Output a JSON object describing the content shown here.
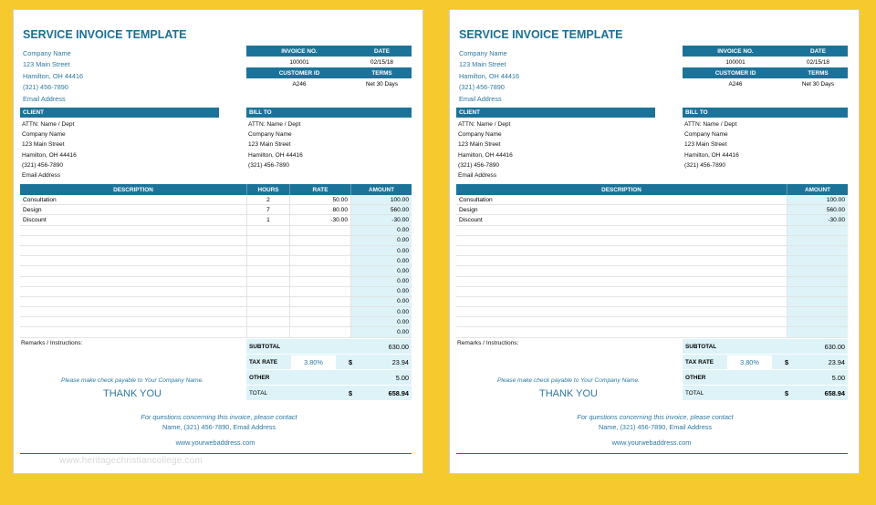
{
  "title": "SERVICE INVOICE TEMPLATE",
  "company": {
    "name": "Company Name",
    "street": "123 Main Street",
    "city": "Hamilton, OH  44416",
    "phone": "(321) 456-7890",
    "email": "Email Address"
  },
  "invoice_header": {
    "invoice_no_label": "INVOICE NO.",
    "date_label": "DATE",
    "invoice_no": "100001",
    "date": "02/15/18",
    "customer_id_label": "CUSTOMER ID",
    "terms_label": "TERMS",
    "customer_id": "A246",
    "terms": "Net 30 Days"
  },
  "client": {
    "label": "CLIENT",
    "attn": "ATTN: Name / Dept",
    "company": "Company Name",
    "street": "123 Main Street",
    "city": "Hamilton, OH  44416",
    "phone": "(321) 456-7890",
    "email": "Email Address"
  },
  "bill_to": {
    "label": "BILL TO",
    "attn": "ATTN: Name / Dept",
    "company": "Company Name",
    "street": "123 Main Street",
    "city": "Hamilton, OH  44416",
    "phone": "(321) 456-7890"
  },
  "columns": {
    "description": "DESCRIPTION",
    "hours": "HOURS",
    "rate": "RATE",
    "amount": "AMOUNT"
  },
  "line_items": [
    {
      "description": "Consultation",
      "hours": "2",
      "rate": "50.00",
      "amount": "100.00"
    },
    {
      "description": "Design",
      "hours": "7",
      "rate": "80.00",
      "amount": "560.00"
    },
    {
      "description": "Discount",
      "hours": "1",
      "rate": "-30.00",
      "amount": "-30.00"
    },
    {
      "description": "",
      "hours": "",
      "rate": "",
      "amount": "0.00"
    },
    {
      "description": "",
      "hours": "",
      "rate": "",
      "amount": "0.00"
    },
    {
      "description": "",
      "hours": "",
      "rate": "",
      "amount": "0.00"
    },
    {
      "description": "",
      "hours": "",
      "rate": "",
      "amount": "0.00"
    },
    {
      "description": "",
      "hours": "",
      "rate": "",
      "amount": "0.00"
    },
    {
      "description": "",
      "hours": "",
      "rate": "",
      "amount": "0.00"
    },
    {
      "description": "",
      "hours": "",
      "rate": "",
      "amount": "0.00"
    },
    {
      "description": "",
      "hours": "",
      "rate": "",
      "amount": "0.00"
    },
    {
      "description": "",
      "hours": "",
      "rate": "",
      "amount": "0.00"
    },
    {
      "description": "",
      "hours": "",
      "rate": "",
      "amount": "0.00"
    },
    {
      "description": "",
      "hours": "",
      "rate": "",
      "amount": "0.00"
    }
  ],
  "line_items_right": [
    {
      "description": "Consultation",
      "amount": "100.00"
    },
    {
      "description": "Design",
      "amount": "560.00"
    },
    {
      "description": "Discount",
      "amount": "-30.00"
    },
    {
      "description": "",
      "amount": ""
    },
    {
      "description": "",
      "amount": ""
    },
    {
      "description": "",
      "amount": ""
    },
    {
      "description": "",
      "amount": ""
    },
    {
      "description": "",
      "amount": ""
    },
    {
      "description": "",
      "amount": ""
    },
    {
      "description": "",
      "amount": ""
    },
    {
      "description": "",
      "amount": ""
    },
    {
      "description": "",
      "amount": ""
    },
    {
      "description": "",
      "amount": ""
    },
    {
      "description": "",
      "amount": ""
    }
  ],
  "remarks_label": "Remarks / Instructions:",
  "totals": {
    "subtotal_label": "SUBTOTAL",
    "subtotal": "630.00",
    "tax_rate_label": "TAX RATE",
    "tax_rate": "3.80%",
    "currency": "$",
    "tax_amount": "23.94",
    "other_label": "OTHER",
    "other": "5.00",
    "total_label": "TOTAL",
    "total": "658.94"
  },
  "payable_note": "Please make check payable to Your Company Name.",
  "thank_you": "THANK YOU",
  "questions_line1": "For questions concerning this invoice, please contact",
  "questions_line2": "Name, (321) 456-7890, Email Address",
  "website": "www.yourwebaddress.com",
  "watermark": "www.heritagechristiancollege.com",
  "colors": {
    "header_blue": "#1c7399",
    "text_blue": "#2b78a0",
    "light_cyan": "#ddf3f8",
    "background_yellow": "#f6c92e"
  }
}
